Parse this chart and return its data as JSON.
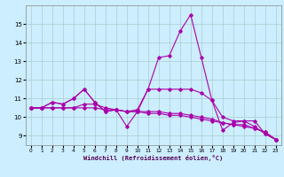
{
  "xlabel": "Windchill (Refroidissement éolien,°C)",
  "bg_color": "#cceeff",
  "line_color": "#aa00aa",
  "grid_color": "#aacccc",
  "x": [
    0,
    1,
    2,
    3,
    4,
    5,
    6,
    7,
    8,
    9,
    10,
    11,
    12,
    13,
    14,
    15,
    16,
    17,
    18,
    19,
    20,
    21,
    22,
    23
  ],
  "series1": [
    10.5,
    10.5,
    10.8,
    10.7,
    11.0,
    11.5,
    10.8,
    10.3,
    10.4,
    9.5,
    10.3,
    11.5,
    13.2,
    13.3,
    14.6,
    15.5,
    13.2,
    10.9,
    9.3,
    9.7,
    9.8,
    9.8,
    9.1,
    8.8
  ],
  "series2": [
    10.5,
    10.5,
    10.8,
    10.7,
    11.0,
    11.5,
    10.8,
    10.3,
    10.4,
    10.3,
    10.4,
    11.5,
    11.5,
    11.5,
    11.5,
    11.5,
    11.3,
    10.9,
    10.0,
    9.8,
    9.8,
    9.5,
    9.1,
    8.8
  ],
  "series3": [
    10.5,
    10.5,
    10.5,
    10.5,
    10.5,
    10.7,
    10.7,
    10.5,
    10.4,
    10.3,
    10.3,
    10.3,
    10.3,
    10.2,
    10.2,
    10.1,
    10.0,
    9.9,
    9.7,
    9.6,
    9.6,
    9.4,
    9.2,
    8.8
  ],
  "series4": [
    10.5,
    10.5,
    10.5,
    10.5,
    10.5,
    10.5,
    10.5,
    10.4,
    10.4,
    10.3,
    10.3,
    10.2,
    10.2,
    10.1,
    10.1,
    10.0,
    9.9,
    9.8,
    9.7,
    9.6,
    9.5,
    9.4,
    9.2,
    8.8
  ],
  "ylim": [
    8.5,
    16.0
  ],
  "yticks": [
    9,
    10,
    11,
    12,
    13,
    14,
    15
  ],
  "xticks": [
    0,
    1,
    2,
    3,
    4,
    5,
    6,
    7,
    8,
    9,
    10,
    11,
    12,
    13,
    14,
    15,
    16,
    17,
    18,
    19,
    20,
    21,
    22,
    23
  ],
  "figsize": [
    3.2,
    2.0
  ],
  "dpi": 100
}
